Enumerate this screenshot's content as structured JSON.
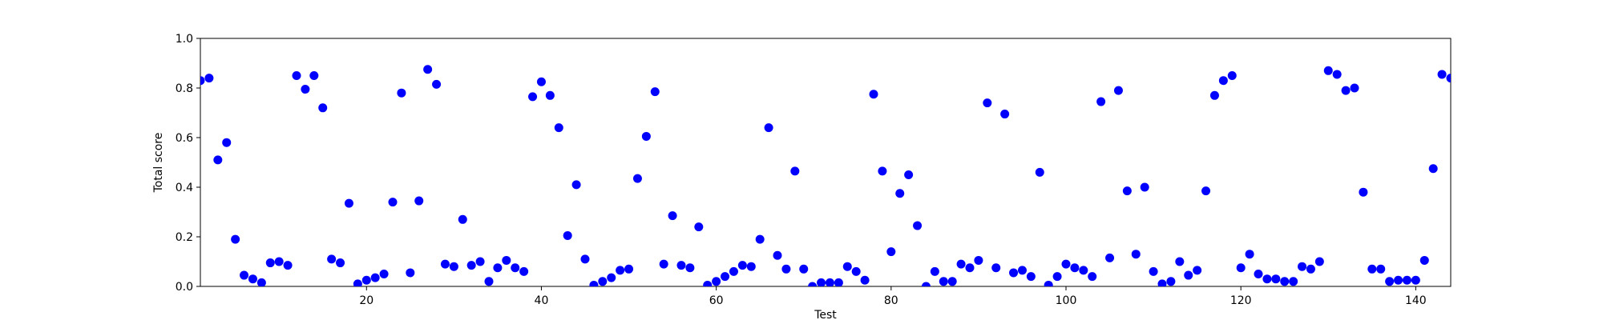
{
  "chart_data": {
    "type": "scatter",
    "title": "",
    "xlabel": "Test",
    "ylabel": "Total score",
    "xlim": [
      1,
      144
    ],
    "ylim": [
      0,
      1.0
    ],
    "xticks": [
      20,
      40,
      60,
      80,
      100,
      120,
      140
    ],
    "yticks": [
      0.0,
      0.2,
      0.4,
      0.6,
      0.8,
      1.0
    ],
    "xtick_labels": [
      "20",
      "40",
      "60",
      "80",
      "100",
      "120",
      "140"
    ],
    "ytick_labels": [
      "0.0",
      "0.2",
      "0.4",
      "0.6",
      "0.8",
      "1.0"
    ],
    "grid": false,
    "marker_color": "#0000ff",
    "series": [
      {
        "x": [
          1,
          2,
          3,
          4,
          5,
          6,
          7,
          8,
          9,
          10,
          11,
          12,
          13,
          14,
          15,
          16,
          17,
          18,
          19,
          20,
          21,
          22,
          23,
          24,
          25,
          26,
          27,
          28,
          29,
          30,
          31,
          32,
          33,
          34,
          35,
          36,
          37,
          38,
          39,
          40,
          41,
          42,
          43,
          44,
          45,
          46,
          47,
          48,
          49,
          50,
          51,
          52,
          53,
          54,
          55,
          56,
          57,
          58,
          59,
          60,
          61,
          62,
          63,
          64,
          65,
          66,
          67,
          68,
          69,
          70,
          71,
          72,
          73,
          74,
          75,
          76,
          77,
          78,
          79,
          80,
          81,
          82,
          83,
          84,
          85,
          86,
          87,
          88,
          89,
          90,
          91,
          92,
          93,
          94,
          95,
          96,
          97,
          98,
          99,
          100,
          101,
          102,
          103,
          104,
          105,
          106,
          107,
          108,
          109,
          110,
          111,
          112,
          113,
          114,
          115,
          116,
          117,
          118,
          119,
          120,
          121,
          122,
          123,
          124,
          125,
          126,
          127,
          128,
          129,
          130,
          131,
          132,
          133,
          134,
          135,
          136,
          137,
          138,
          139,
          140,
          141,
          142,
          143,
          144
        ],
        "y": [
          0.83,
          0.84,
          0.51,
          0.58,
          0.19,
          0.045,
          0.03,
          0.015,
          0.095,
          0.1,
          0.085,
          0.85,
          0.795,
          0.85,
          0.72,
          0.11,
          0.095,
          0.335,
          0.01,
          0.025,
          0.035,
          0.05,
          0.34,
          0.78,
          0.055,
          0.345,
          0.875,
          0.815,
          0.09,
          0.08,
          0.27,
          0.085,
          0.1,
          0.02,
          0.075,
          0.105,
          0.075,
          0.06,
          0.765,
          0.825,
          0.77,
          0.64,
          0.205,
          0.41,
          0.11,
          0.005,
          0.02,
          0.035,
          0.065,
          0.07,
          0.435,
          0.605,
          0.785,
          0.09,
          0.285,
          0.085,
          0.075,
          0.24,
          0.005,
          0.02,
          0.04,
          0.06,
          0.085,
          0.08,
          0.19,
          0.64,
          0.125,
          0.07,
          0.465,
          0.07,
          0.0,
          0.015,
          0.015,
          0.015,
          0.08,
          0.06,
          0.025,
          0.775,
          0.465,
          0.14,
          0.375,
          0.45,
          0.245,
          0.0,
          0.06,
          0.02,
          0.02,
          0.09,
          0.075,
          0.105,
          0.74,
          0.075,
          0.695,
          0.055,
          0.065,
          0.04,
          0.46,
          0.005,
          0.04,
          0.09,
          0.075,
          0.065,
          0.04,
          0.745,
          0.115,
          0.79,
          0.385,
          0.13,
          0.4,
          0.06,
          0.01,
          0.02,
          0.1,
          0.045,
          0.065,
          0.385,
          0.77,
          0.83,
          0.85,
          0.075,
          0.13,
          0.05,
          0.03,
          0.03,
          0.02,
          0.02,
          0.08,
          0.07,
          0.1,
          0.87,
          0.855,
          0.79,
          0.8,
          0.38,
          0.07,
          0.07,
          0.02,
          0.025,
          0.025,
          0.025,
          0.105,
          0.475,
          0.855,
          0.84
        ]
      }
    ]
  }
}
